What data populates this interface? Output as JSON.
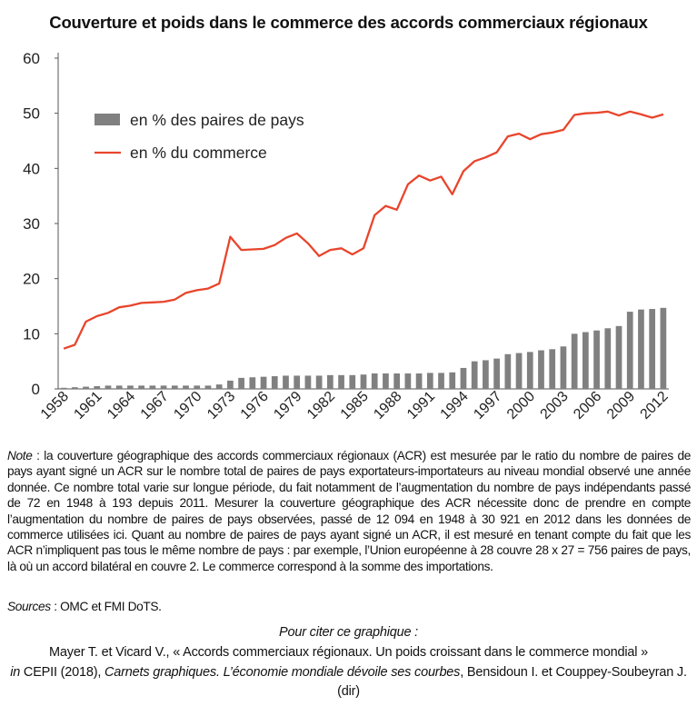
{
  "title": "Couverture et poids dans le commerce des accords commerciaux régionaux",
  "chart_data": {
    "type": "bar+line",
    "x": [
      1958,
      1959,
      1960,
      1961,
      1962,
      1963,
      1964,
      1965,
      1966,
      1967,
      1968,
      1969,
      1970,
      1971,
      1972,
      1973,
      1974,
      1975,
      1976,
      1977,
      1978,
      1979,
      1980,
      1981,
      1982,
      1983,
      1984,
      1985,
      1986,
      1987,
      1988,
      1989,
      1990,
      1991,
      1992,
      1993,
      1994,
      1995,
      1996,
      1997,
      1998,
      1999,
      2000,
      2001,
      2002,
      2003,
      2004,
      2005,
      2006,
      2007,
      2008,
      2009,
      2010,
      2011,
      2012
    ],
    "xticks": [
      "1958",
      "1961",
      "1964",
      "1967",
      "1970",
      "1973",
      "1976",
      "1979",
      "1982",
      "1985",
      "1988",
      "1991",
      "1994",
      "1997",
      "2000",
      "2003",
      "2006",
      "2009",
      "2012"
    ],
    "yticks": [
      "0",
      "10",
      "20",
      "30",
      "40",
      "50",
      "60"
    ],
    "ylim": [
      0,
      60
    ],
    "series": [
      {
        "name": "en % des paires de pays",
        "type": "bar",
        "color": "#808080",
        "values": [
          0.2,
          0.3,
          0.4,
          0.5,
          0.6,
          0.6,
          0.6,
          0.6,
          0.6,
          0.6,
          0.6,
          0.6,
          0.6,
          0.6,
          0.8,
          1.5,
          2.0,
          2.1,
          2.2,
          2.3,
          2.4,
          2.4,
          2.4,
          2.4,
          2.5,
          2.5,
          2.5,
          2.6,
          2.8,
          2.8,
          2.8,
          2.8,
          2.8,
          2.9,
          2.9,
          3.0,
          3.8,
          5.0,
          5.2,
          5.5,
          6.3,
          6.5,
          6.7,
          7.0,
          7.2,
          7.7,
          10.0,
          10.3,
          10.6,
          11.0,
          11.4,
          14.0,
          14.4,
          14.5,
          14.7
        ]
      },
      {
        "name": "en % du commerce",
        "type": "line",
        "color": "#e8452c",
        "values": [
          7.3,
          8.0,
          12.2,
          13.2,
          13.8,
          14.8,
          15.1,
          15.6,
          15.7,
          15.8,
          16.2,
          17.4,
          17.9,
          18.2,
          19.1,
          27.6,
          25.2,
          25.3,
          25.4,
          26.1,
          27.4,
          28.2,
          26.4,
          24.1,
          25.2,
          25.5,
          24.4,
          25.5,
          31.5,
          33.2,
          32.5,
          37.1,
          38.7,
          37.8,
          38.5,
          35.3,
          39.5,
          41.3,
          42.0,
          42.9,
          45.8,
          46.3,
          45.3,
          46.2,
          46.5,
          47.0,
          49.7,
          50.0,
          50.1,
          50.3,
          49.6,
          50.3,
          49.8,
          49.2,
          49.8
        ]
      }
    ],
    "legend_position": "top-left",
    "grid": false
  },
  "note": {
    "label": "Note",
    "text": " : la couverture géographique des accords commerciaux régionaux (ACR) est mesurée par le ratio du nombre de paires de pays ayant signé un ACR sur le nombre total de paires de pays exportateurs-importateurs au niveau mondial observé une année donnée. Ce nombre total varie sur longue période, du fait notamment de l’augmentation du nombre de pays indépendants passé de 72 en 1948 à 193 depuis 2011. Mesurer la couverture géographique des ACR nécessite donc de prendre en compte l’augmentation du nombre de paires de pays observées, passé de 12 094 en 1948 à 30 921 en 2012 dans les données de commerce utilisées ici. Quant au nombre de paires de pays ayant signé un ACR, il est mesuré en tenant compte du fait que les ACR n’impliquent pas tous le même nombre de pays : par exemple, l’Union européenne à 28 couvre 28 x 27 = 756 paires de pays, là où un accord bilatéral en couvre 2. Le commerce correspond à la somme des importations."
  },
  "sources": {
    "label": "Sources",
    "text": "  : OMC et FMI DoTS."
  },
  "citation": {
    "heading": "Pour citer ce graphique :",
    "line1": "Mayer T. et Vicard V., « Accords commerciaux régionaux. Un poids croissant dans le commerce mondial »",
    "in": "in",
    "publisher": " CEPII (2018), ",
    "book": "Carnets graphiques. L’économie mondiale dévoile ses courbes",
    "editors": ", Bensidoun I. et Couppey-Soubeyran J. (dir)"
  }
}
